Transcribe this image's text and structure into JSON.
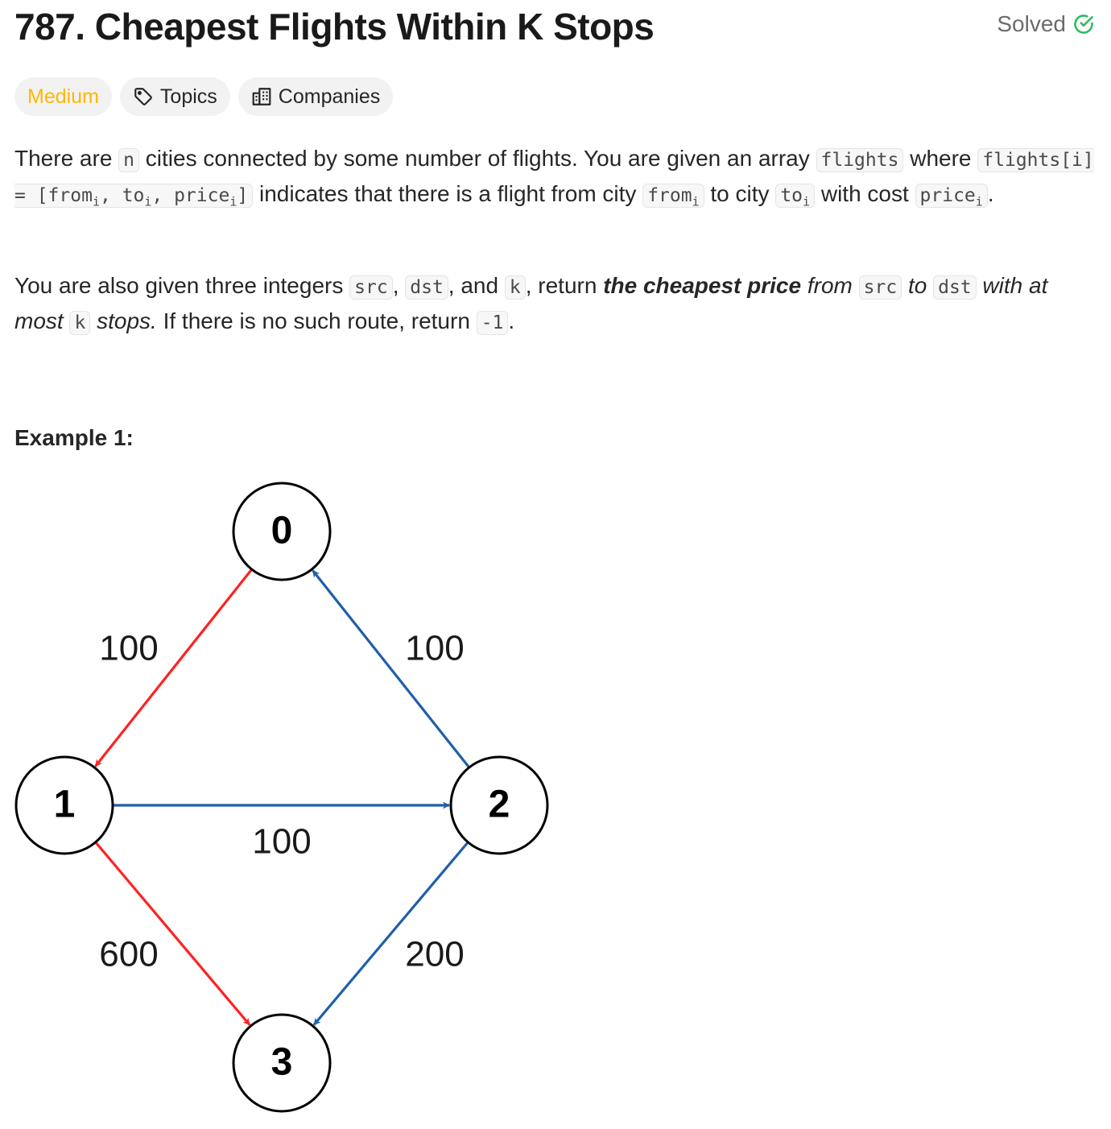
{
  "header": {
    "title": "787. Cheapest Flights Within K Stops",
    "status": "Solved",
    "status_color": "#2cbb5d"
  },
  "tags": [
    {
      "label": "Medium",
      "color": "#ffb800"
    },
    {
      "label": "Topics",
      "icon": "tag-icon"
    },
    {
      "label": "Companies",
      "icon": "building-icon"
    }
  ],
  "description": {
    "p1": {
      "t1": "There are ",
      "c1": "n",
      "t2": " cities connected by some number of flights. You are given an array ",
      "c2": "flights",
      "t3": " where ",
      "c3a": "flights[i] = [from",
      "c3b": ", to",
      "c3c": ", price",
      "c3d": "]",
      "sub": "i",
      "t4": " indicates that there is a flight from city ",
      "c4": "from",
      "t5": " to city ",
      "c5": "to",
      "t6": " with cost ",
      "c6": "price",
      "t7": "."
    },
    "p2": {
      "t1": "You are also given three integers ",
      "c1": "src",
      "t2": ", ",
      "c2": "dst",
      "t3": ", and ",
      "c3": "k",
      "t4": ", return ",
      "b1": "the cheapest price",
      "i1": " from ",
      "c4": "src",
      "i2": " to ",
      "c5": "dst",
      "i3": " with at most ",
      "c6": "k",
      "i4": " stops.",
      "t5": " If there is no such route, return ",
      "c7": "-1",
      "t6": "."
    }
  },
  "example": {
    "title": "Example 1:",
    "graph": {
      "nodes": [
        "0",
        "1",
        "2",
        "3"
      ],
      "edges": [
        {
          "from": "0",
          "to": "1",
          "label": "100",
          "color": "#ff2222"
        },
        {
          "from": "2",
          "to": "0",
          "label": "100",
          "color": "#1f5fa8"
        },
        {
          "from": "1",
          "to": "2",
          "label": "100",
          "color": "#1f5fa8"
        },
        {
          "from": "1",
          "to": "3",
          "label": "600",
          "color": "#ff2222"
        },
        {
          "from": "2",
          "to": "3",
          "label": "200",
          "color": "#1f5fa8"
        }
      ]
    }
  }
}
